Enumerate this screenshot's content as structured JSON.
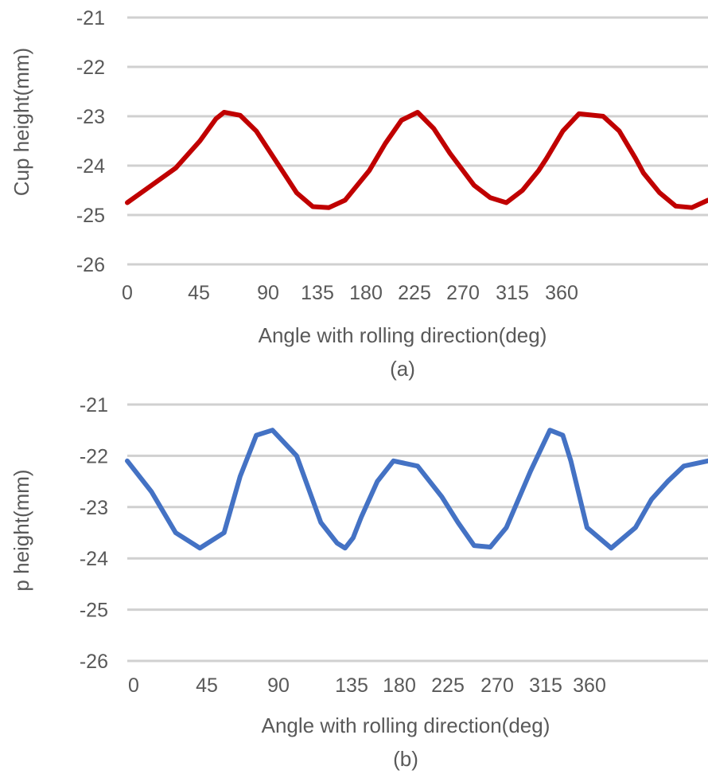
{
  "chart_data": [
    {
      "id": "a",
      "type": "line",
      "caption": "(a)",
      "xlabel": "Angle with rolling direction(deg)",
      "ylabel": "Cup height(mm)",
      "x_tick_labels": [
        "0",
        "45",
        "90",
        "135",
        "180",
        "225",
        "270",
        "315",
        "360"
      ],
      "y_ticks": [
        -21,
        -22,
        -23,
        -24,
        -25,
        -26
      ],
      "ylim": [
        -26,
        -21
      ],
      "xlim": [
        0,
        360
      ],
      "grid": "horizontal",
      "color": "#c00000",
      "series": [
        {
          "x": [
            0,
            15,
            30,
            45,
            55,
            60,
            70,
            80,
            90,
            100,
            105,
            115,
            125,
            135,
            140,
            150,
            160,
            170,
            180,
            190,
            200,
            215,
            225,
            235,
            245,
            255,
            260,
            270,
            280,
            295,
            305,
            315,
            320,
            330,
            340,
            350,
            360
          ],
          "y": [
            -24.75,
            -24.4,
            -24.05,
            -23.5,
            -23.05,
            -22.92,
            -22.98,
            -23.3,
            -23.8,
            -24.3,
            -24.55,
            -24.83,
            -24.85,
            -24.7,
            -24.5,
            -24.1,
            -23.55,
            -23.08,
            -22.92,
            -23.25,
            -23.75,
            -24.4,
            -24.65,
            -24.75,
            -24.5,
            -24.1,
            -23.85,
            -23.3,
            -22.95,
            -23.0,
            -23.3,
            -23.85,
            -24.15,
            -24.55,
            -24.82,
            -24.85,
            -24.7
          ]
        }
      ]
    },
    {
      "id": "b",
      "type": "line",
      "caption": "(b)",
      "xlabel": "Angle with rolling direction(deg)",
      "ylabel": "p height(mm)",
      "x_tick_labels": [
        "0",
        "45",
        "90",
        "135",
        "180",
        "225",
        "270",
        "315",
        "360"
      ],
      "y_ticks": [
        -21,
        -22,
        -23,
        -24,
        -25,
        -26
      ],
      "ylim": [
        -26,
        -21
      ],
      "xlim": [
        0,
        360
      ],
      "grid": "horizontal",
      "color": "#4472c4",
      "series": [
        {
          "x": [
            0,
            15,
            30,
            45,
            60,
            70,
            80,
            90,
            105,
            120,
            130,
            135,
            140,
            145,
            155,
            165,
            180,
            195,
            205,
            215,
            225,
            235,
            250,
            262,
            270,
            275,
            285,
            300,
            315,
            325,
            335,
            345,
            360
          ],
          "y": [
            -22.1,
            -22.7,
            -23.5,
            -23.8,
            -23.5,
            -22.4,
            -21.6,
            -21.5,
            -22.0,
            -23.3,
            -23.7,
            -23.8,
            -23.6,
            -23.2,
            -22.5,
            -22.1,
            -22.2,
            -22.8,
            -23.3,
            -23.75,
            -23.78,
            -23.4,
            -22.3,
            -21.5,
            -21.6,
            -22.1,
            -23.4,
            -23.8,
            -23.4,
            -22.85,
            -22.5,
            -22.2,
            -22.1
          ]
        }
      ]
    }
  ]
}
